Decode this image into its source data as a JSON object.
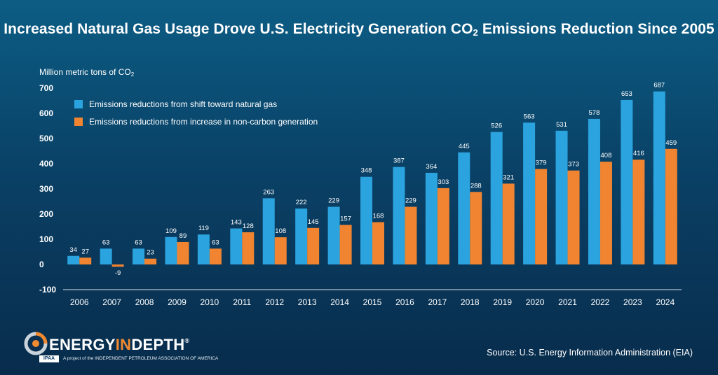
{
  "title": {
    "main": "Increased Natural Gas Usage Drove U.S. Electricity Generation CO",
    "sub": "2",
    "tail": " Emissions Reduction Since 2005"
  },
  "units": {
    "main": "Million metric tons of CO",
    "sub": "2"
  },
  "legend": [
    {
      "label": "Emissions reductions from shift toward natural gas",
      "color": "#2aa3df"
    },
    {
      "label": "Emissions reductions from increase in non-carbon generation",
      "color": "#f08430"
    }
  ],
  "source": "Source: U.S. Energy Information Administration (EIA)",
  "logo": {
    "brand_a": "ENERGY",
    "brand_b": "IN",
    "brand_c": "DEPTH",
    "reg": "®",
    "ipaa": "IPAA",
    "tagline": "A project of the INDEPENDENT PETROLEUM ASSOCIATION OF AMERICA"
  },
  "colors": {
    "natural_gas": "#2aa3df",
    "non_carbon": "#f08430",
    "background_top": "#0c5d85",
    "background_bottom": "#082c4c"
  },
  "chart_data": {
    "type": "bar",
    "title": "Increased Natural Gas Usage Drove U.S. Electricity Generation CO2 Emissions Reduction Since 2005",
    "ylabel": "Million metric tons of CO2",
    "xlabel": "",
    "ylim": [
      -100,
      700
    ],
    "yticks": [
      -100,
      0,
      100,
      200,
      300,
      400,
      500,
      600,
      700
    ],
    "grid": false,
    "legend_position": "top-left",
    "categories": [
      "2006",
      "2007",
      "2008",
      "2009",
      "2010",
      "2011",
      "2012",
      "2013",
      "2014",
      "2015",
      "2016",
      "2017",
      "2018",
      "2019",
      "2020",
      "2021",
      "2022",
      "2023",
      "2024"
    ],
    "series": [
      {
        "name": "Emissions reductions from shift toward natural gas",
        "color": "#2aa3df",
        "values": [
          34,
          63,
          63,
          109,
          119,
          143,
          263,
          222,
          229,
          348,
          387,
          364,
          445,
          526,
          563,
          531,
          578,
          653,
          687
        ]
      },
      {
        "name": "Emissions reductions from increase in non-carbon generation",
        "color": "#f08430",
        "values": [
          27,
          -9,
          23,
          89,
          63,
          128,
          108,
          145,
          157,
          168,
          229,
          303,
          288,
          321,
          379,
          373,
          408,
          416,
          459
        ]
      }
    ]
  }
}
